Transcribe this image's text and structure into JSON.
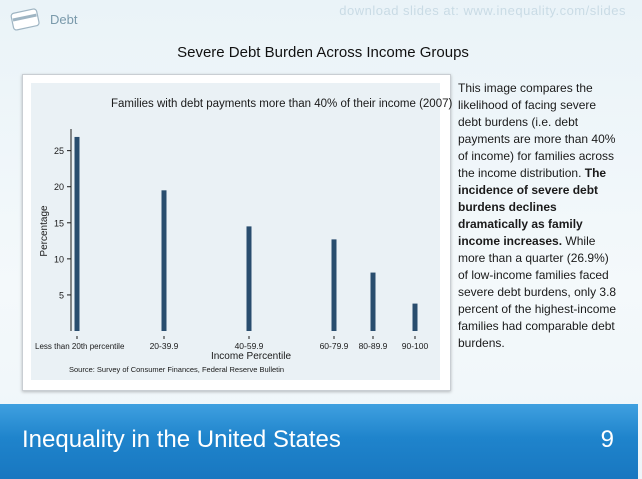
{
  "header": {
    "section_label": "Debt",
    "watermark": "download slides at: www.inequality.com/slides",
    "slide_title": "Severe Debt Burden Across Income Groups"
  },
  "description": {
    "plain_1": "This image compares the likelihood of facing severe debt burdens (i.e. debt payments are more than 40% of income) for families across the income distribution.",
    "bold": "The incidence of severe debt burdens declines dramatically as family income increases.",
    "plain_2": "While more than a quarter (26.9%) of low-income families faced severe debt burdens, only 3.8 percent of the highest-income families had comparable debt burdens."
  },
  "footer": {
    "title": "Inequality in the United States",
    "page_number": "9"
  },
  "colors": {
    "bar": "#294d6e",
    "footer_bg": "#1f84cc"
  },
  "chart_data": {
    "type": "bar",
    "title": "Families with debt payments more than 40% of their income (2007)",
    "xlabel": "Income Percentile",
    "ylabel": "Percentage",
    "categories": [
      "Less than 20th percentile",
      "20-39.9",
      "40-59.9",
      "60-79.9",
      "80-89.9",
      "90-100"
    ],
    "values": [
      26.9,
      19.5,
      14.5,
      12.7,
      8.1,
      3.8
    ],
    "yticks": [
      5,
      10,
      15,
      20,
      25
    ],
    "ylim": [
      0,
      28
    ],
    "source": "Source: Survey of Consumer Finances, Federal Reserve Bulletin",
    "grid": false
  }
}
